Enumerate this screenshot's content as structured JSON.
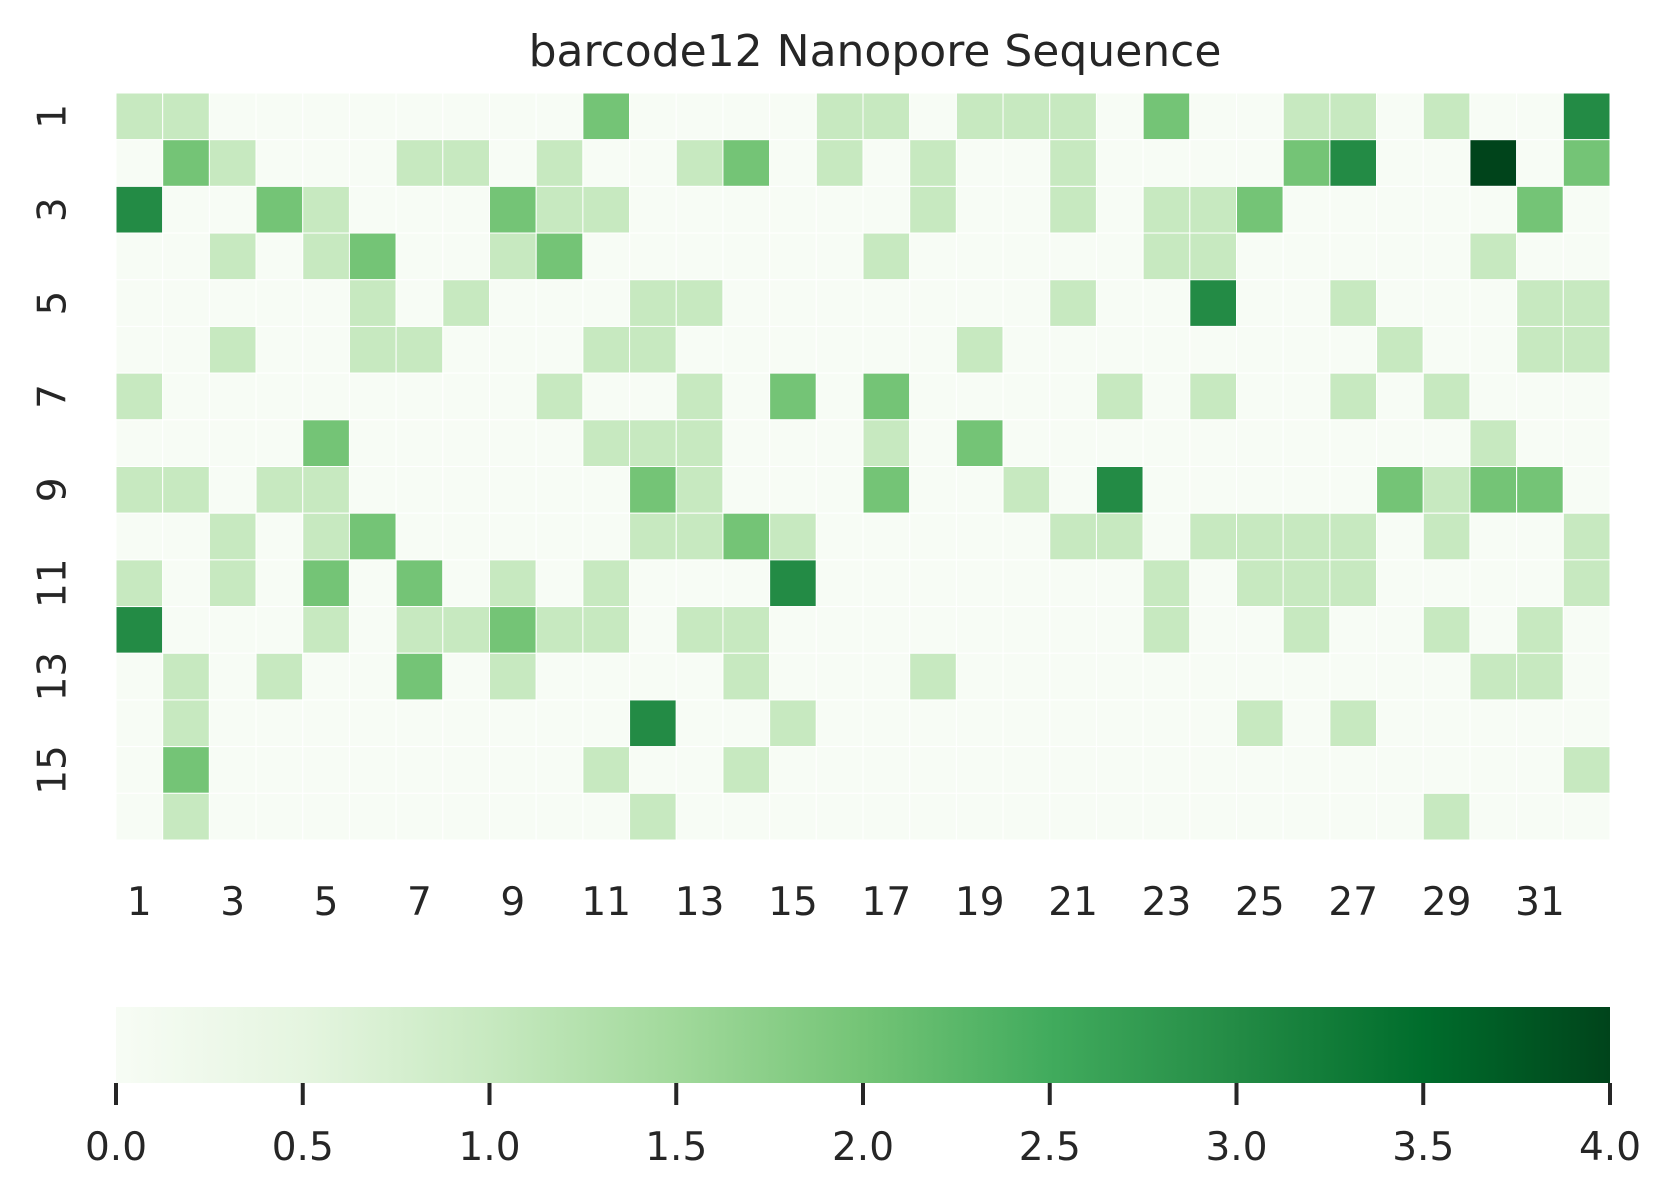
{
  "chart_data": {
    "type": "heatmap",
    "title": "barcode12 Nanopore Sequence",
    "xlabel": "",
    "ylabel": "",
    "x_tick_labels": [
      "1",
      "3",
      "5",
      "7",
      "9",
      "11",
      "13",
      "15",
      "17",
      "19",
      "21",
      "23",
      "25",
      "27",
      "29",
      "31"
    ],
    "y_tick_labels": [
      "1",
      "3",
      "5",
      "7",
      "9",
      "11",
      "13",
      "15"
    ],
    "n_rows": 16,
    "n_cols": 32,
    "value_range": [
      0,
      4
    ],
    "colormap": "Greens",
    "colorbar": {
      "orientation": "horizontal",
      "placement": "bottom",
      "tick_labels": [
        "0.0",
        "0.5",
        "1.0",
        "1.5",
        "2.0",
        "2.5",
        "3.0",
        "3.5",
        "4.0"
      ],
      "tick_values": [
        0,
        0.5,
        1.0,
        1.5,
        2.0,
        2.5,
        3.0,
        3.5,
        4.0
      ]
    },
    "values": [
      [
        1,
        1,
        0,
        0,
        0,
        0,
        0,
        0,
        0,
        0,
        2,
        0,
        0,
        0,
        0,
        1,
        1,
        0,
        1,
        1,
        1,
        0,
        2,
        0,
        0,
        1,
        1,
        0,
        1,
        0,
        0,
        3
      ],
      [
        0,
        2,
        1,
        0,
        0,
        0,
        1,
        1,
        0,
        1,
        0,
        0,
        1,
        2,
        0,
        1,
        0,
        1,
        0,
        0,
        1,
        0,
        0,
        0,
        0,
        2,
        3,
        0,
        0,
        4,
        0,
        2
      ],
      [
        3,
        0,
        0,
        2,
        1,
        0,
        0,
        0,
        2,
        1,
        1,
        0,
        0,
        0,
        0,
        0,
        0,
        1,
        0,
        0,
        1,
        0,
        1,
        1,
        2,
        0,
        0,
        0,
        0,
        0,
        2,
        0
      ],
      [
        0,
        0,
        1,
        0,
        1,
        2,
        0,
        0,
        1,
        2,
        0,
        0,
        0,
        0,
        0,
        0,
        1,
        0,
        0,
        0,
        0,
        0,
        1,
        1,
        0,
        0,
        0,
        0,
        0,
        1,
        0,
        0
      ],
      [
        0,
        0,
        0,
        0,
        0,
        1,
        0,
        1,
        0,
        0,
        0,
        1,
        1,
        0,
        0,
        0,
        0,
        0,
        0,
        0,
        1,
        0,
        0,
        3,
        0,
        0,
        1,
        0,
        0,
        0,
        1,
        1
      ],
      [
        0,
        0,
        1,
        0,
        0,
        1,
        1,
        0,
        0,
        0,
        1,
        1,
        0,
        0,
        0,
        0,
        0,
        0,
        1,
        0,
        0,
        0,
        0,
        0,
        0,
        0,
        0,
        1,
        0,
        0,
        1,
        1
      ],
      [
        1,
        0,
        0,
        0,
        0,
        0,
        0,
        0,
        0,
        1,
        0,
        0,
        1,
        0,
        2,
        0,
        2,
        0,
        0,
        0,
        0,
        1,
        0,
        1,
        0,
        0,
        1,
        0,
        1,
        0,
        0,
        0
      ],
      [
        0,
        0,
        0,
        0,
        2,
        0,
        0,
        0,
        0,
        0,
        1,
        1,
        1,
        0,
        0,
        0,
        1,
        0,
        2,
        0,
        0,
        0,
        0,
        0,
        0,
        0,
        0,
        0,
        0,
        1,
        0,
        0
      ],
      [
        1,
        1,
        0,
        1,
        1,
        0,
        0,
        0,
        0,
        0,
        0,
        2,
        1,
        0,
        0,
        0,
        2,
        0,
        0,
        1,
        0,
        3,
        0,
        0,
        0,
        0,
        0,
        2,
        1,
        2,
        2,
        0
      ],
      [
        0,
        0,
        1,
        0,
        1,
        2,
        0,
        0,
        0,
        0,
        0,
        1,
        1,
        2,
        1,
        0,
        0,
        0,
        0,
        0,
        1,
        1,
        0,
        1,
        1,
        1,
        1,
        0,
        1,
        0,
        0,
        1
      ],
      [
        1,
        0,
        1,
        0,
        2,
        0,
        2,
        0,
        1,
        0,
        1,
        0,
        0,
        0,
        3,
        0,
        0,
        0,
        0,
        0,
        0,
        0,
        1,
        0,
        1,
        1,
        1,
        0,
        0,
        0,
        0,
        1
      ],
      [
        3,
        0,
        0,
        0,
        1,
        0,
        1,
        1,
        2,
        1,
        1,
        0,
        1,
        1,
        0,
        0,
        0,
        0,
        0,
        0,
        0,
        0,
        1,
        0,
        0,
        1,
        0,
        0,
        1,
        0,
        1,
        0
      ],
      [
        0,
        1,
        0,
        1,
        0,
        0,
        2,
        0,
        1,
        0,
        0,
        0,
        0,
        1,
        0,
        0,
        0,
        1,
        0,
        0,
        0,
        0,
        0,
        0,
        0,
        0,
        0,
        0,
        0,
        1,
        1,
        0
      ],
      [
        0,
        1,
        0,
        0,
        0,
        0,
        0,
        0,
        0,
        0,
        0,
        3,
        0,
        0,
        1,
        0,
        0,
        0,
        0,
        0,
        0,
        0,
        0,
        0,
        1,
        0,
        1,
        0,
        0,
        0,
        0,
        0
      ],
      [
        0,
        2,
        0,
        0,
        0,
        0,
        0,
        0,
        0,
        0,
        1,
        0,
        0,
        1,
        0,
        0,
        0,
        0,
        0,
        0,
        0,
        0,
        0,
        0,
        0,
        0,
        0,
        0,
        0,
        0,
        0,
        1
      ],
      [
        0,
        1,
        0,
        0,
        0,
        0,
        0,
        0,
        0,
        0,
        0,
        1,
        0,
        0,
        0,
        0,
        0,
        0,
        0,
        0,
        0,
        0,
        0,
        0,
        0,
        0,
        0,
        0,
        1,
        0,
        0,
        0
      ]
    ],
    "cell_colors": {
      "0": "#f7fcf5",
      "1": "#c7e9c0",
      "2": "#74c476",
      "3": "#238b45",
      "4": "#00441b"
    },
    "gradient_stops": [
      "#f7fcf5",
      "#e5f5e0",
      "#c7e9c0",
      "#a1d99b",
      "#74c476",
      "#41ab5d",
      "#238b45",
      "#006d2c",
      "#00441b"
    ]
  }
}
